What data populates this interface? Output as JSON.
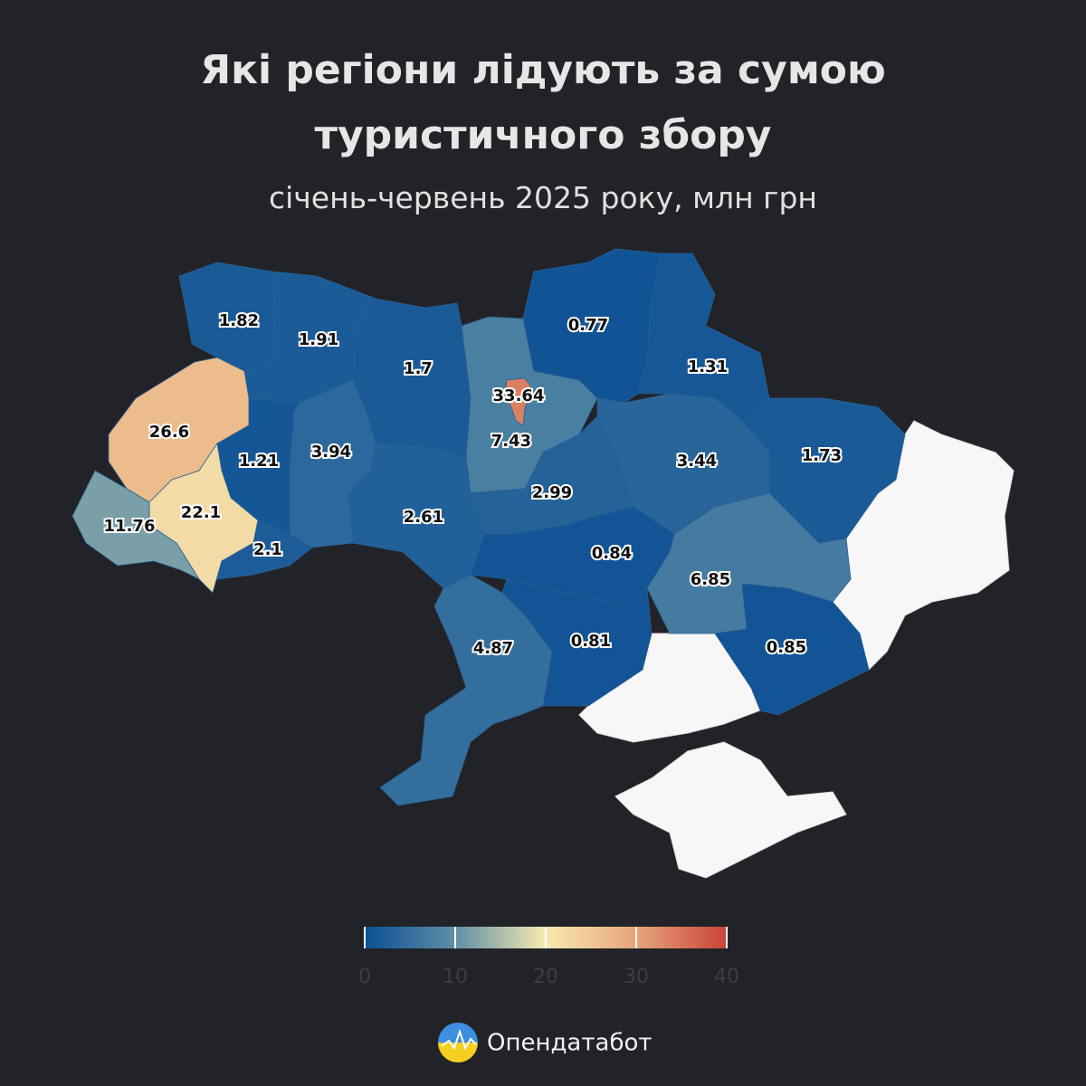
{
  "chart_data": {
    "type": "choropleth",
    "title": [
      "Які регіони лідують за сумою",
      "туристичного збору"
    ],
    "subtitle": "січень-червень 2025 року, млн грн",
    "values": [
      1.82,
      1.91,
      1.7,
      7.43,
      33.64,
      0.77,
      1.31,
      1.73,
      3.44,
      2.99,
      2.61,
      3.94,
      1.21,
      26.6,
      22.1,
      11.76,
      2.1,
      0.84,
      6.85,
      0.81,
      4.87,
      0.85
    ],
    "colorscale": [
      "#0b4f94",
      "#5f8fa6",
      "#f7e9b0",
      "#e6a57a",
      "#c8433a"
    ],
    "clim": [
      0,
      40
    ],
    "cticks": [
      0,
      10,
      20,
      30,
      40
    ]
  },
  "footer": {
    "brand": "Опендатабот"
  }
}
